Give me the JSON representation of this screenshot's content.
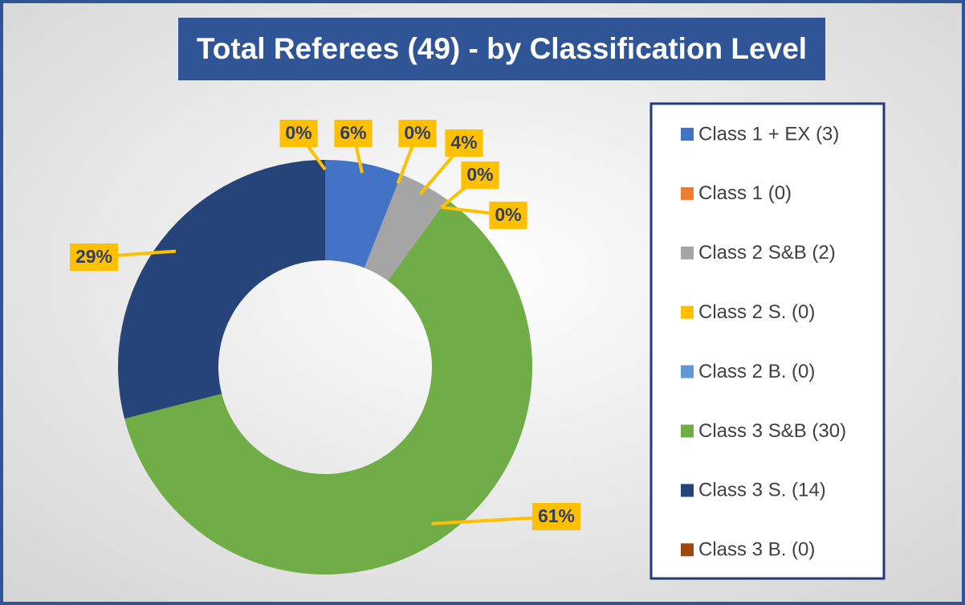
{
  "chart_data": {
    "type": "donut",
    "title": "Total Referees (49) - by Classification Level",
    "categories": [
      "Class 1 + EX (3)",
      "Class 1 (0)",
      "Class 2 S&B (2)",
      "Class 2 S. (0)",
      "Class 2 B. (0)",
      "Class 3 S&B (30)",
      "Class 3 S. (14)",
      "Class 3 B. (0)"
    ],
    "values": [
      6,
      0,
      4,
      0,
      0,
      61,
      29,
      0
    ],
    "value_labels": [
      "6%",
      "0%",
      "4%",
      "0%",
      "0%",
      "61%",
      "29%",
      "0%"
    ],
    "colors": [
      "#4472c4",
      "#ed7d31",
      "#a5a5a5",
      "#ffc000",
      "#5b9bd5",
      "#70ad47",
      "#264478",
      "#9e480e"
    ],
    "legend": "right"
  }
}
